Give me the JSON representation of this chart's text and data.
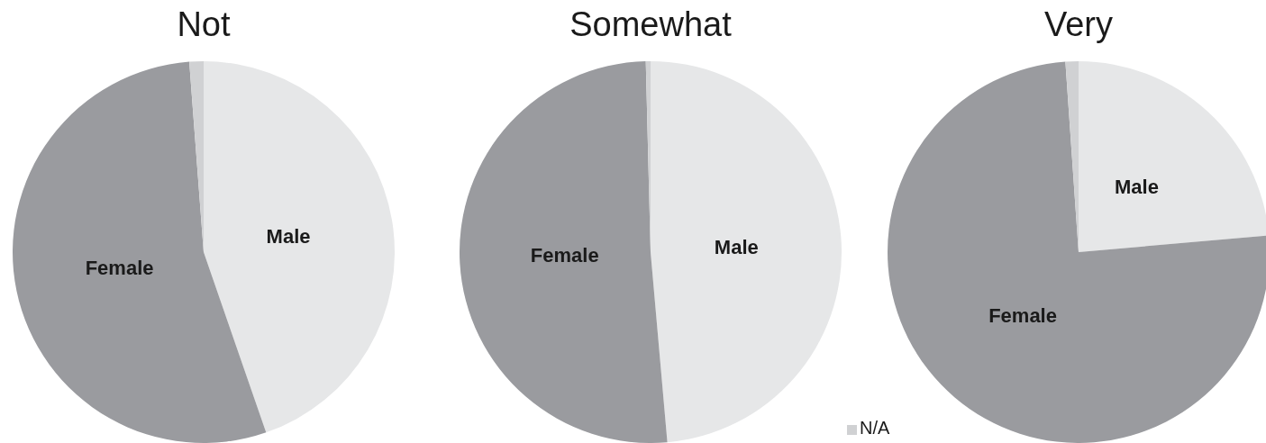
{
  "chart_data": [
    {
      "type": "pie",
      "title": "Not",
      "categories": [
        "Male",
        "Female",
        null
      ],
      "values": [
        44.7,
        54.1,
        1.2
      ],
      "colors": [
        "#e6e7e8",
        "#9a9b9f",
        "#d0d1d3"
      ]
    },
    {
      "type": "pie",
      "title": "Somewhat",
      "categories": [
        "Male",
        "Female",
        null
      ],
      "values": [
        48.6,
        51.0,
        0.4
      ],
      "colors": [
        "#e6e7e8",
        "#9a9b9f",
        "#d0d1d3"
      ]
    },
    {
      "type": "pie",
      "title": "Very",
      "categories": [
        "Male",
        "Female",
        "N/A"
      ],
      "values": [
        23.6,
        75.3,
        1.1
      ],
      "colors": [
        "#e6e7e8",
        "#9a9b9f",
        "#d0d1d3"
      ],
      "legend": "bottom left"
    }
  ]
}
